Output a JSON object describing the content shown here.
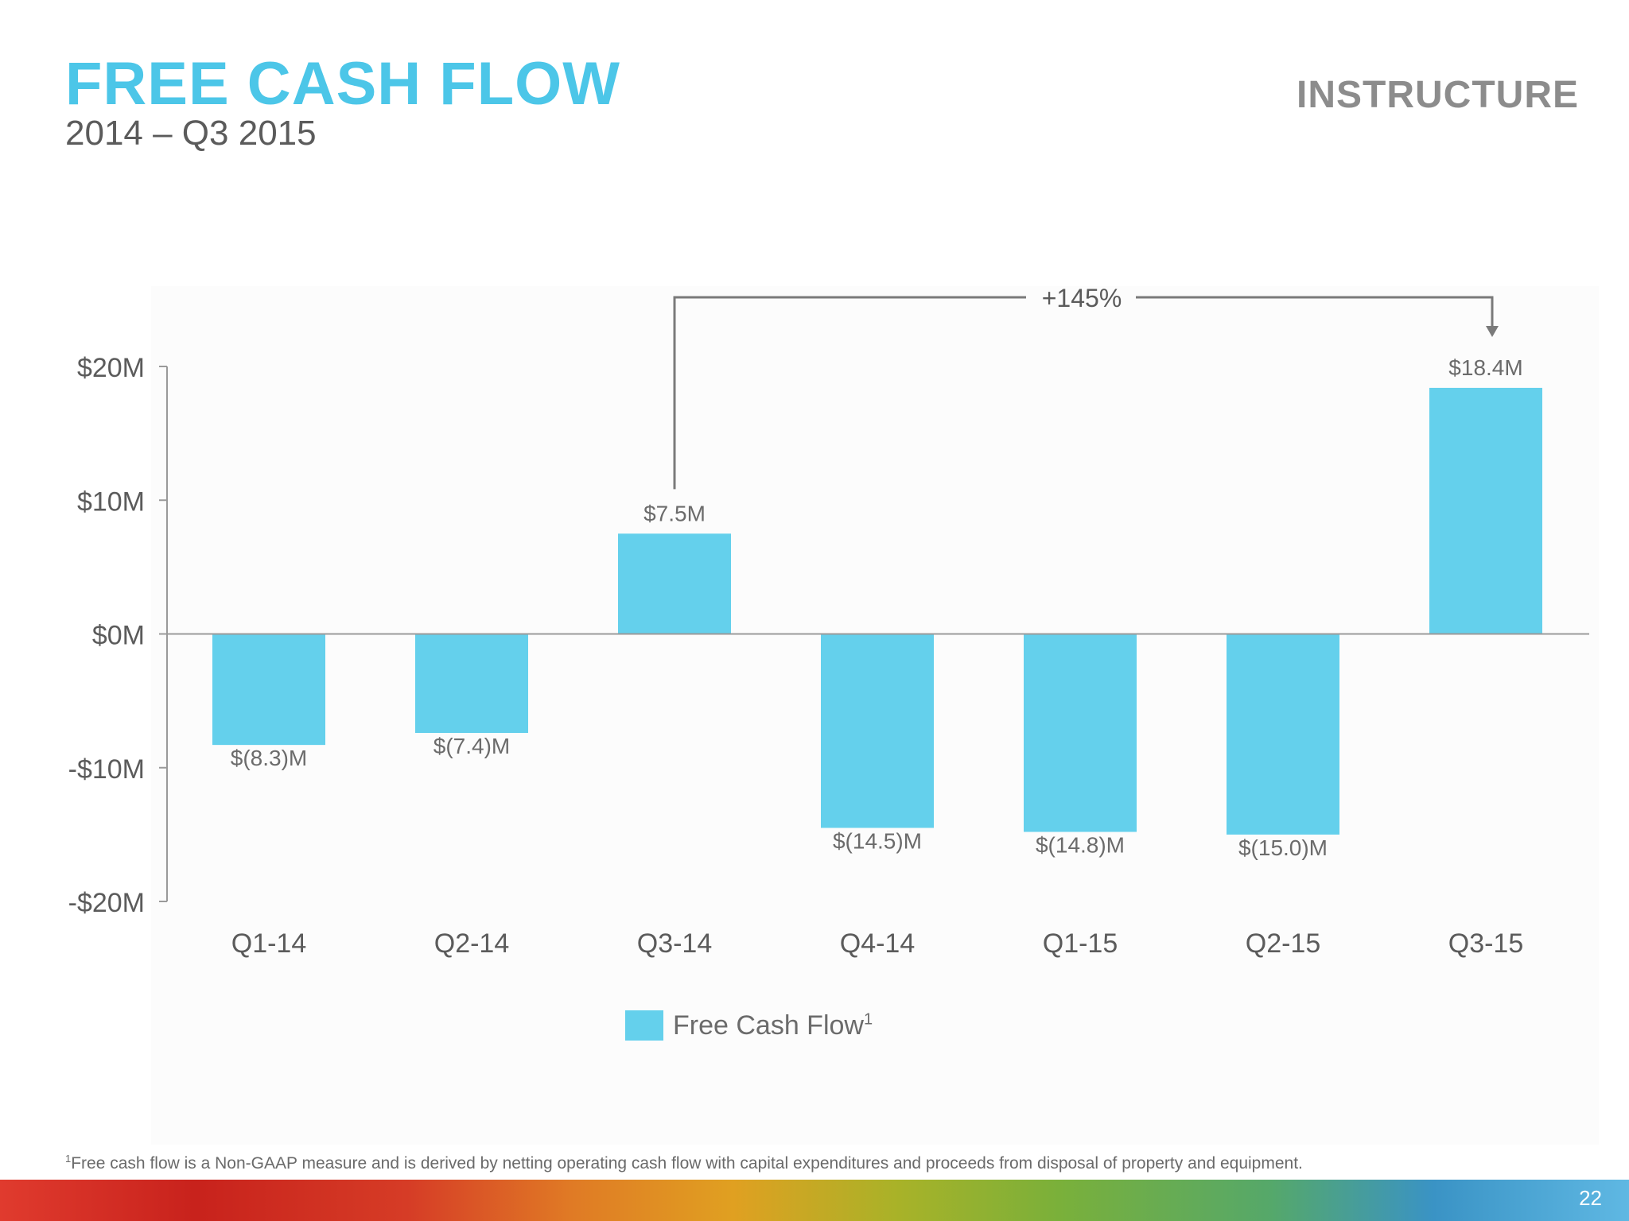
{
  "slide": {
    "title": "FREE CASH FLOW",
    "subtitle": "2014 – Q3 2015",
    "logo_text": "INSTRUCTURE",
    "page_number": "22",
    "footnote_marker": "1",
    "footnote": "Free cash flow is a Non-GAAP measure and is derived by netting operating cash flow with capital expenditures and proceeds from disposal of property and equipment."
  },
  "colors": {
    "title": "#4cc6e8",
    "bar": "#64d0ec",
    "axis": "#9a9a9a",
    "text": "#6b6b6b"
  },
  "chart_data": {
    "type": "bar",
    "categories": [
      "Q1-14",
      "Q2-14",
      "Q3-14",
      "Q4-14",
      "Q1-15",
      "Q2-15",
      "Q3-15"
    ],
    "series": [
      {
        "name": "Free Cash Flow",
        "name_superscript": "1",
        "values": [
          -8.3,
          -7.4,
          7.5,
          -14.5,
          -14.8,
          -15.0,
          18.4
        ],
        "labels": [
          "$(8.3)M",
          "$(7.4)M",
          "$7.5M",
          "$(14.5)M",
          "$(14.8)M",
          "$(15.0)M",
          "$18.4M"
        ]
      }
    ],
    "ylim": [
      -20,
      20
    ],
    "yticks": [
      20,
      10,
      0,
      -10,
      -20
    ],
    "ytick_labels": [
      "$20M",
      "$10M",
      "$0M",
      "-$10M",
      "-$20M"
    ],
    "legend_position": "bottom",
    "annotation": {
      "text": "+145%",
      "from": "Q3-14",
      "to": "Q3-15"
    }
  }
}
